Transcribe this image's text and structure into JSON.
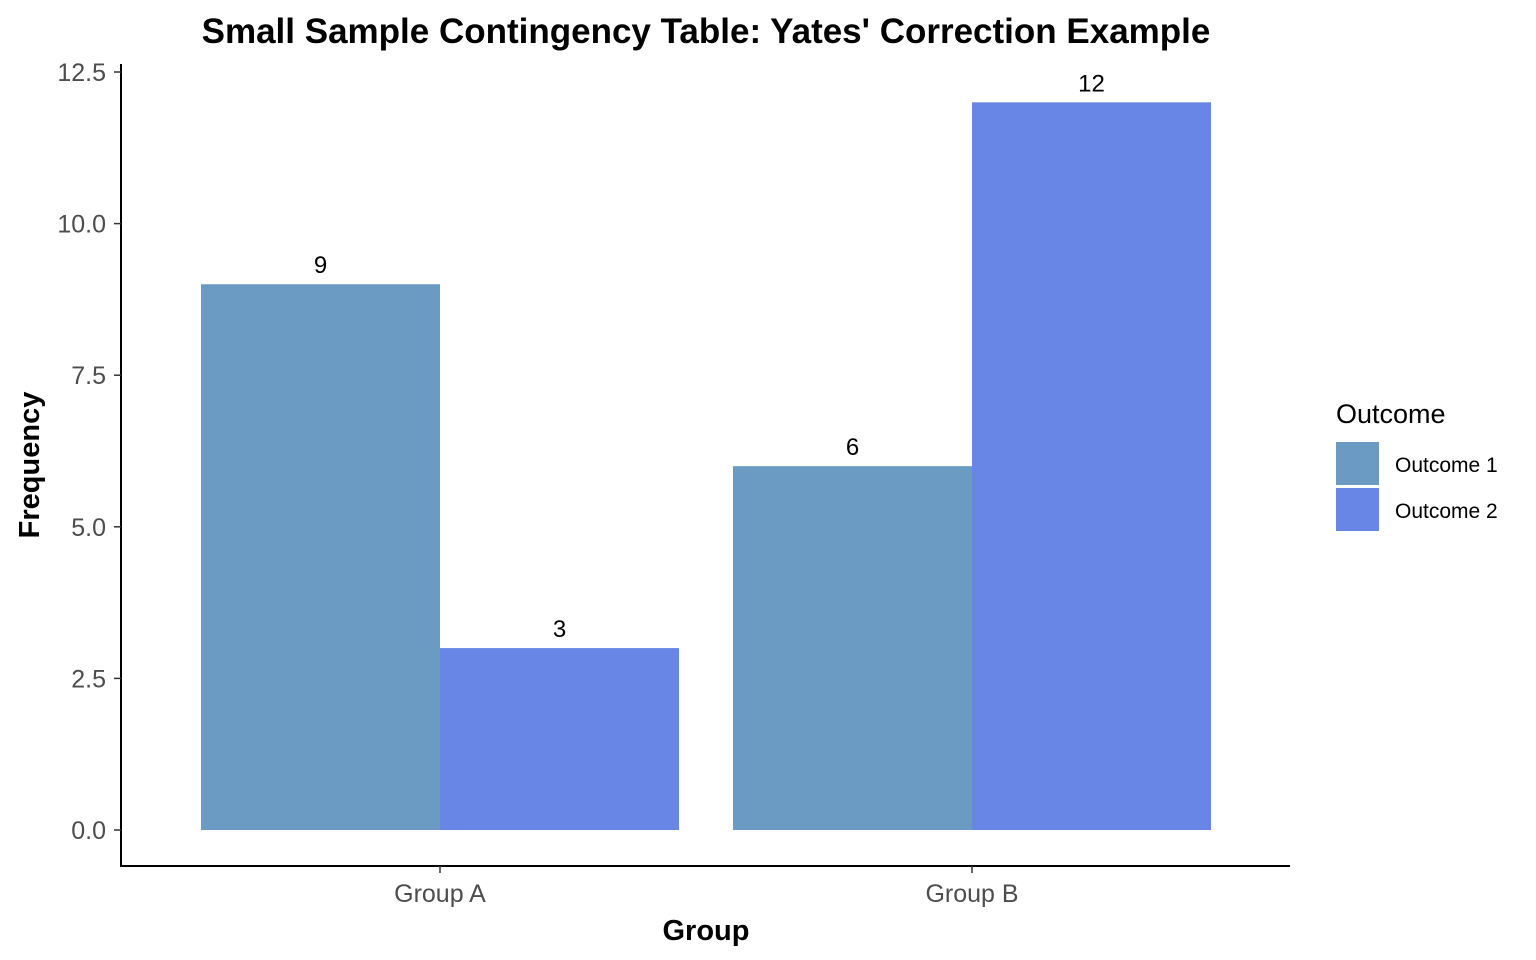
{
  "chart_data": {
    "type": "bar",
    "title": "Small Sample Contingency Table: Yates' Correction Example",
    "xlabel": "Group",
    "ylabel": "Frequency",
    "categories": [
      "Group A",
      "Group B"
    ],
    "series": [
      {
        "name": "Outcome 1",
        "color": "#6b9bc3",
        "values": [
          9,
          6
        ]
      },
      {
        "name": "Outcome 2",
        "color": "#6886e5",
        "values": [
          3,
          12
        ]
      }
    ],
    "ylim": [
      0,
      12.5
    ],
    "yticks": [
      "0.0",
      "2.5",
      "5.0",
      "7.5",
      "10.0",
      "12.5"
    ],
    "legend_title": "Outcome",
    "legend_position": "right",
    "grid": false,
    "data_labels": true
  }
}
